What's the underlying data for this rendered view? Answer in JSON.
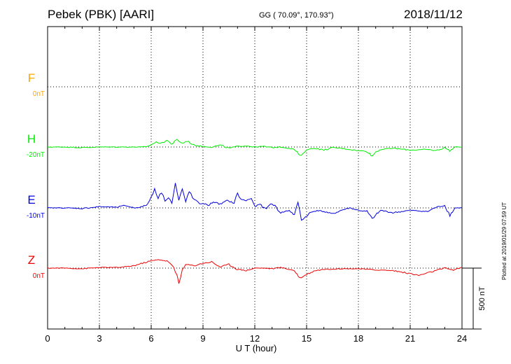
{
  "header": {
    "station": "Pebek (PBK)  [AARI]",
    "coords": "GG ( 70.09°, 170.93°)",
    "date": "2018/11/12"
  },
  "footer": {
    "plotted": "Plotted at 2019/01/29 07:59 UT",
    "scale_label": "500 nT"
  },
  "chart_data": {
    "type": "line",
    "xlabel": "U T (hour)",
    "xlim": [
      0,
      24
    ],
    "xticks": [
      "0",
      "3",
      "6",
      "9",
      "12",
      "15",
      "18",
      "21",
      "24"
    ],
    "scale_bar_nT": 500,
    "colors": {
      "F": "#ffa500",
      "H": "#00ee00",
      "E": "#0000dd",
      "Z": "#ee0000"
    },
    "series": [
      {
        "name": "F",
        "offset_label": "0nT",
        "x": [],
        "values": []
      },
      {
        "name": "H",
        "offset_label": "-20nT",
        "x": [
          0,
          1,
          2,
          3,
          4,
          5,
          5.5,
          5.8,
          6.0,
          6.3,
          6.6,
          6.9,
          7.2,
          7.5,
          7.8,
          8.1,
          8.4,
          8.7,
          9.0,
          9.5,
          10.0,
          10.5,
          11.0,
          11.5,
          12.0,
          12.5,
          13.0,
          13.5,
          14.0,
          14.3,
          14.6,
          14.8,
          15.0,
          15.5,
          16.0,
          16.5,
          17.0,
          17.5,
          18.0,
          18.5,
          18.8,
          19.0,
          19.3,
          20.0,
          21.0,
          22.0,
          22.5,
          23.0,
          23.3,
          23.6,
          24.0
        ],
        "values": [
          0,
          0,
          -5,
          0,
          0,
          0,
          0,
          5,
          20,
          40,
          30,
          55,
          25,
          60,
          30,
          50,
          20,
          10,
          5,
          0,
          15,
          -10,
          5,
          10,
          0,
          5,
          -5,
          0,
          -10,
          -20,
          -70,
          -60,
          -20,
          -10,
          -25,
          -5,
          -10,
          -20,
          -30,
          -35,
          -75,
          -40,
          -20,
          -10,
          -25,
          -20,
          -30,
          -5,
          -30,
          0,
          0
        ]
      },
      {
        "name": "E",
        "offset_label": "-10nT",
        "x": [
          0,
          1,
          2,
          3,
          4,
          4.5,
          5,
          5.5,
          5.8,
          6.0,
          6.2,
          6.4,
          6.6,
          6.8,
          7.0,
          7.2,
          7.4,
          7.6,
          7.8,
          8.0,
          8.2,
          8.4,
          8.6,
          8.8,
          9.0,
          9.3,
          9.6,
          10.0,
          10.4,
          10.8,
          11.0,
          11.2,
          11.5,
          11.8,
          12.0,
          12.3,
          12.6,
          13.0,
          13.5,
          14.0,
          14.3,
          14.5,
          14.7,
          14.9,
          15.2,
          15.6,
          16.0,
          16.5,
          17.0,
          17.5,
          18.0,
          18.5,
          18.8,
          19.0,
          19.3,
          20.0,
          21.0,
          22.0,
          22.5,
          23.0,
          23.3,
          23.6,
          24.0
        ],
        "values": [
          0,
          0,
          -5,
          10,
          5,
          20,
          0,
          10,
          30,
          90,
          160,
          80,
          130,
          60,
          90,
          40,
          200,
          60,
          150,
          50,
          140,
          80,
          60,
          30,
          40,
          20,
          50,
          30,
          60,
          40,
          120,
          70,
          60,
          80,
          10,
          30,
          -10,
          40,
          -40,
          -20,
          -60,
          50,
          -100,
          -80,
          -40,
          -20,
          -30,
          -50,
          -20,
          0,
          -20,
          -30,
          -90,
          -60,
          -20,
          -40,
          -20,
          -30,
          5,
          20,
          -60,
          0,
          0
        ]
      },
      {
        "name": "Z",
        "offset_label": "0nT",
        "x": [
          0,
          1,
          2,
          3,
          4,
          4.5,
          5,
          5.5,
          6.0,
          6.5,
          7.0,
          7.3,
          7.5,
          7.6,
          7.8,
          8.0,
          8.5,
          9.0,
          9.5,
          10.0,
          10.5,
          11.0,
          11.5,
          12.0,
          12.5,
          13.0,
          13.5,
          14.0,
          14.3,
          14.6,
          14.8,
          15.0,
          15.5,
          16.0,
          17.0,
          18.0,
          19.0,
          20.0,
          21.0,
          21.5,
          22.0,
          22.5,
          23.0,
          23.5,
          24.0
        ],
        "values": [
          0,
          0,
          -5,
          5,
          5,
          10,
          20,
          40,
          60,
          70,
          55,
          0,
          -60,
          -120,
          -20,
          30,
          20,
          40,
          50,
          10,
          30,
          -10,
          -20,
          0,
          0,
          -5,
          5,
          -10,
          -20,
          -80,
          -70,
          -50,
          -20,
          -10,
          -5,
          -5,
          -15,
          -20,
          -45,
          -60,
          -40,
          -20,
          0,
          -15,
          5
        ]
      }
    ]
  }
}
